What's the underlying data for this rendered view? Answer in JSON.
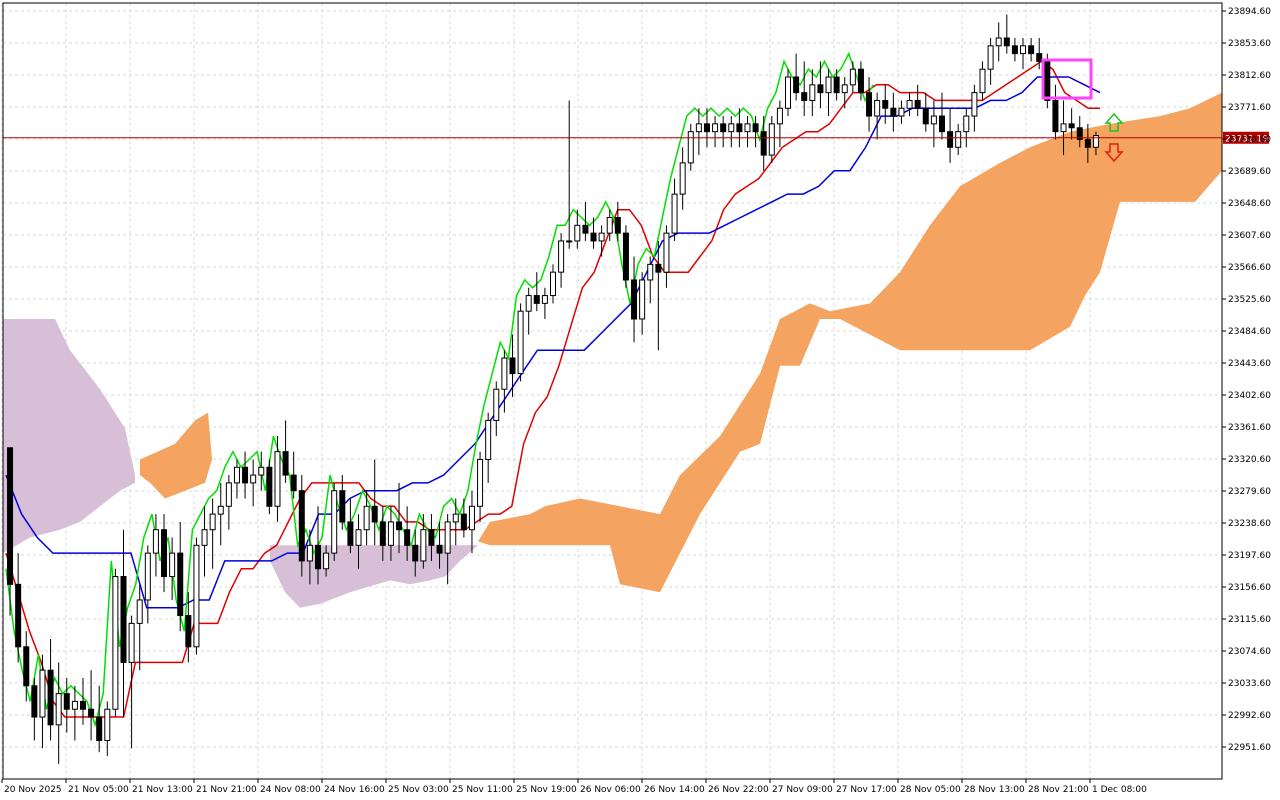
{
  "window": {
    "background": "#ffffff"
  },
  "chart_data": {
    "type": "candlestick",
    "indicator": "Ichimoku Kinko Hyo",
    "grid": true,
    "ylim": [
      22920,
      23910
    ],
    "y_ticks": [
      "23894.60",
      "23853.60",
      "23812.60",
      "23771.60",
      "23730.60",
      "23689.60",
      "23648.60",
      "23607.60",
      "23566.60",
      "23525.60",
      "23484.60",
      "23443.60",
      "23402.60",
      "23361.60",
      "23320.60",
      "23279.60",
      "23238.60",
      "23197.60",
      "23156.60",
      "23115.60",
      "23074.60",
      "23033.60",
      "22992.60",
      "22951.60"
    ],
    "x_ticks": [
      "20 Nov 2025",
      "21 Nov 05:00",
      "21 Nov 13:00",
      "21 Nov 21:00",
      "24 Nov 08:00",
      "24 Nov 16:00",
      "25 Nov 03:00",
      "25 Nov 11:00",
      "25 Nov 19:00",
      "26 Nov 06:00",
      "26 Nov 14:00",
      "26 Nov 22:00",
      "27 Nov 09:00",
      "27 Nov 17:00",
      "28 Nov 05:00",
      "28 Nov 13:00",
      "28 Nov 21:00",
      "1 Dec 08:00"
    ],
    "current_price": "23732.19",
    "colors": {
      "tenkan": "#e00000",
      "kijun": "#0000dd",
      "chikou": "#00e000",
      "kumo_bull": "#f4a460",
      "kumo_bear": "#d8bfd8",
      "price_line": "#b40000",
      "candle": "#000000",
      "highlight_box": "#ff44ff",
      "arrow_up": "#22c022",
      "arrow_down": "#e02000"
    },
    "candles": [
      [
        23335,
        23335,
        23120,
        23160
      ],
      [
        23160,
        23200,
        23060,
        23080
      ],
      [
        23080,
        23100,
        23010,
        23030
      ],
      [
        23030,
        23040,
        22960,
        22990
      ],
      [
        22990,
        23070,
        22950,
        23050
      ],
      [
        23050,
        23090,
        22960,
        22980
      ],
      [
        22980,
        23060,
        22930,
        23020
      ],
      [
        23020,
        23040,
        22970,
        23000
      ],
      [
        23000,
        23030,
        22960,
        23010
      ],
      [
        23010,
        23040,
        22980,
        23000
      ],
      [
        23000,
        23050,
        22960,
        22990
      ],
      [
        22990,
        23030,
        22945,
        22960
      ],
      [
        22960,
        23010,
        22940,
        23000
      ],
      [
        23000,
        23180,
        22990,
        23170
      ],
      [
        23170,
        23230,
        22990,
        23060
      ],
      [
        23060,
        23120,
        22950,
        23110
      ],
      [
        23110,
        23160,
        23050,
        23140
      ],
      [
        23140,
        23210,
        23110,
        23200
      ],
      [
        23200,
        23250,
        23170,
        23230
      ],
      [
        23230,
        23250,
        23150,
        23170
      ],
      [
        23170,
        23220,
        23140,
        23200
      ],
      [
        23200,
        23240,
        23100,
        23120
      ],
      [
        23120,
        23150,
        23060,
        23080
      ],
      [
        23080,
        23220,
        23070,
        23210
      ],
      [
        23210,
        23260,
        23170,
        23230
      ],
      [
        23230,
        23270,
        23180,
        23250
      ],
      [
        23250,
        23290,
        23210,
        23260
      ],
      [
        23260,
        23300,
        23230,
        23290
      ],
      [
        23290,
        23320,
        23270,
        23310
      ],
      [
        23310,
        23330,
        23270,
        23290
      ],
      [
        23290,
        23320,
        23260,
        23300
      ],
      [
        23300,
        23330,
        23280,
        23310
      ],
      [
        23310,
        23320,
        23250,
        23260
      ],
      [
        23260,
        23350,
        23240,
        23330
      ],
      [
        23330,
        23370,
        23290,
        23300
      ],
      [
        23300,
        23330,
        23270,
        23280
      ],
      [
        23280,
        23300,
        23170,
        23190
      ],
      [
        23190,
        23230,
        23160,
        23210
      ],
      [
        23210,
        23260,
        23160,
        23180
      ],
      [
        23180,
        23210,
        23170,
        23200
      ],
      [
        23200,
        23290,
        23190,
        23280
      ],
      [
        23280,
        23300,
        23230,
        23240
      ],
      [
        23240,
        23270,
        23200,
        23210
      ],
      [
        23210,
        23250,
        23180,
        23230
      ],
      [
        23230,
        23280,
        23210,
        23260
      ],
      [
        23260,
        23320,
        23210,
        23240
      ],
      [
        23240,
        23260,
        23190,
        23210
      ],
      [
        23210,
        23260,
        23190,
        23240
      ],
      [
        23240,
        23290,
        23200,
        23230
      ],
      [
        23230,
        23260,
        23190,
        23210
      ],
      [
        23210,
        23230,
        23170,
        23190
      ],
      [
        23190,
        23250,
        23180,
        23230
      ],
      [
        23230,
        23250,
        23190,
        23210
      ],
      [
        23210,
        23240,
        23180,
        23200
      ],
      [
        23200,
        23250,
        23160,
        23240
      ],
      [
        23240,
        23270,
        23210,
        23250
      ],
      [
        23250,
        23270,
        23220,
        23230
      ],
      [
        23230,
        23280,
        23200,
        23260
      ],
      [
        23260,
        23330,
        23240,
        23320
      ],
      [
        23320,
        23380,
        23290,
        23370
      ],
      [
        23370,
        23420,
        23350,
        23410
      ],
      [
        23410,
        23460,
        23380,
        23450
      ],
      [
        23450,
        23480,
        23400,
        23430
      ],
      [
        23430,
        23520,
        23420,
        23510
      ],
      [
        23510,
        23540,
        23480,
        23530
      ],
      [
        23530,
        23560,
        23510,
        23520
      ],
      [
        23520,
        23540,
        23500,
        23530
      ],
      [
        23530,
        23570,
        23520,
        23560
      ],
      [
        23560,
        23610,
        23540,
        23600
      ],
      [
        23600,
        23780,
        23590,
        23600
      ],
      [
        23600,
        23640,
        23590,
        23620
      ],
      [
        23620,
        23650,
        23600,
        23610
      ],
      [
        23610,
        23630,
        23590,
        23600
      ],
      [
        23600,
        23620,
        23580,
        23610
      ],
      [
        23610,
        23640,
        23600,
        23630
      ],
      [
        23630,
        23650,
        23600,
        23610
      ],
      [
        23610,
        23620,
        23540,
        23550
      ],
      [
        23550,
        23580,
        23470,
        23500
      ],
      [
        23500,
        23560,
        23480,
        23550
      ],
      [
        23550,
        23580,
        23520,
        23570
      ],
      [
        23570,
        23600,
        23460,
        23560
      ],
      [
        23560,
        23620,
        23540,
        23610
      ],
      [
        23610,
        23680,
        23600,
        23660
      ],
      [
        23660,
        23720,
        23640,
        23700
      ],
      [
        23700,
        23750,
        23690,
        23740
      ],
      [
        23740,
        23770,
        23710,
        23750
      ],
      [
        23750,
        23770,
        23720,
        23740
      ],
      [
        23740,
        23760,
        23720,
        23750
      ],
      [
        23750,
        23760,
        23720,
        23740
      ],
      [
        23740,
        23760,
        23720,
        23750
      ],
      [
        23750,
        23770,
        23720,
        23740
      ],
      [
        23740,
        23760,
        23720,
        23750
      ],
      [
        23750,
        23760,
        23720,
        23740
      ],
      [
        23740,
        23760,
        23690,
        23710
      ],
      [
        23710,
        23760,
        23700,
        23750
      ],
      [
        23750,
        23780,
        23720,
        23770
      ],
      [
        23770,
        23820,
        23760,
        23810
      ],
      [
        23810,
        23840,
        23780,
        23790
      ],
      [
        23790,
        23830,
        23760,
        23780
      ],
      [
        23780,
        23820,
        23760,
        23800
      ],
      [
        23800,
        23830,
        23770,
        23790
      ],
      [
        23790,
        23820,
        23760,
        23810
      ],
      [
        23810,
        23820,
        23780,
        23790
      ],
      [
        23790,
        23810,
        23770,
        23800
      ],
      [
        23800,
        23830,
        23790,
        23820
      ],
      [
        23820,
        23830,
        23780,
        23790
      ],
      [
        23790,
        23810,
        23740,
        23760
      ],
      [
        23760,
        23790,
        23730,
        23780
      ],
      [
        23780,
        23800,
        23750,
        23770
      ],
      [
        23770,
        23790,
        23740,
        23760
      ],
      [
        23760,
        23780,
        23750,
        23770
      ],
      [
        23770,
        23790,
        23760,
        23780
      ],
      [
        23780,
        23800,
        23760,
        23770
      ],
      [
        23770,
        23790,
        23740,
        23750
      ],
      [
        23750,
        23780,
        23720,
        23760
      ],
      [
        23760,
        23790,
        23730,
        23740
      ],
      [
        23740,
        23770,
        23700,
        23720
      ],
      [
        23720,
        23750,
        23710,
        23740
      ],
      [
        23740,
        23770,
        23720,
        23760
      ],
      [
        23760,
        23800,
        23740,
        23790
      ],
      [
        23790,
        23830,
        23780,
        23820
      ],
      [
        23820,
        23860,
        23800,
        23850
      ],
      [
        23850,
        23880,
        23830,
        23860
      ],
      [
        23860,
        23890,
        23840,
        23850
      ],
      [
        23850,
        23860,
        23830,
        23840
      ],
      [
        23840,
        23860,
        23820,
        23850
      ],
      [
        23850,
        23860,
        23830,
        23840
      ],
      [
        23840,
        23860,
        23820,
        23830
      ],
      [
        23830,
        23840,
        23770,
        23780
      ],
      [
        23780,
        23800,
        23730,
        23740
      ],
      [
        23740,
        23780,
        23710,
        23750
      ],
      [
        23750,
        23770,
        23730,
        23745
      ],
      [
        23745,
        23760,
        23720,
        23730
      ],
      [
        23730,
        23750,
        23700,
        23720
      ],
      [
        23720,
        23740,
        23710,
        23735
      ]
    ],
    "tenkan": [
      23200,
      23150,
      23100,
      23060,
      23010,
      22990,
      22990,
      22990,
      22990,
      22990,
      22990,
      23060,
      23060,
      23060,
      23060,
      23060,
      23110,
      23110,
      23110,
      23150,
      23180,
      23180,
      23200,
      23210,
      23240,
      23270,
      23290,
      23290,
      23290,
      23290,
      23290,
      23270,
      23260,
      23260,
      23240,
      23240,
      23230,
      23230,
      23230,
      23230,
      23240,
      23250,
      23250,
      23260,
      23340,
      23380,
      23400,
      23440,
      23490,
      23540,
      23560,
      23600,
      23640,
      23640,
      23620,
      23580,
      23560,
      23560,
      23560,
      23580,
      23600,
      23640,
      23660,
      23670,
      23680,
      23700,
      23720,
      23730,
      23740,
      23740,
      23750,
      23770,
      23790,
      23790,
      23800,
      23800,
      23790,
      23790,
      23790,
      23780,
      23780,
      23780,
      23780,
      23780,
      23790,
      23800,
      23810,
      23820,
      23830,
      23820,
      23790,
      23780,
      23770,
      23770
    ],
    "kijun": [
      23300,
      23250,
      23220,
      23200,
      23200,
      23200,
      23200,
      23200,
      23200,
      23130,
      23130,
      23130,
      23140,
      23140,
      23190,
      23190,
      23190,
      23190,
      23200,
      23200,
      23250,
      23250,
      23270,
      23280,
      23280,
      23280,
      23290,
      23290,
      23300,
      23320,
      23340,
      23370,
      23400,
      23430,
      23460,
      23460,
      23460,
      23460,
      23480,
      23500,
      23520,
      23560,
      23600,
      23610,
      23610,
      23610,
      23620,
      23630,
      23640,
      23650,
      23660,
      23660,
      23670,
      23690,
      23690,
      23720,
      23760,
      23760,
      23770,
      23770,
      23770,
      23770,
      23770,
      23780,
      23780,
      23790,
      23810,
      23810,
      23810,
      23800,
      23790
    ]
  },
  "price_scale": {
    "current_label": "23732.19"
  }
}
